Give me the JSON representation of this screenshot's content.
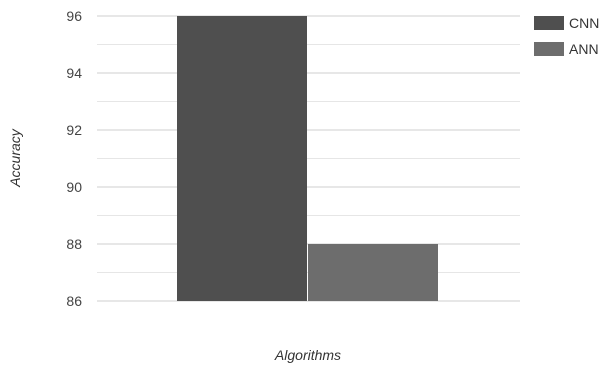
{
  "chart_data": {
    "type": "bar",
    "xlabel": "Algorithms",
    "ylabel": "Accuracy",
    "ylim": [
      86,
      96
    ],
    "yticks": [
      "86",
      "88",
      "90",
      "92",
      "94",
      "96"
    ],
    "grid": true,
    "legend_position": "top-right",
    "series": [
      {
        "name": "CNN",
        "values": [
          96
        ],
        "color": "#4f4f4f"
      },
      {
        "name": "ANN",
        "values": [
          88
        ],
        "color": "#6d6d6d"
      }
    ]
  }
}
